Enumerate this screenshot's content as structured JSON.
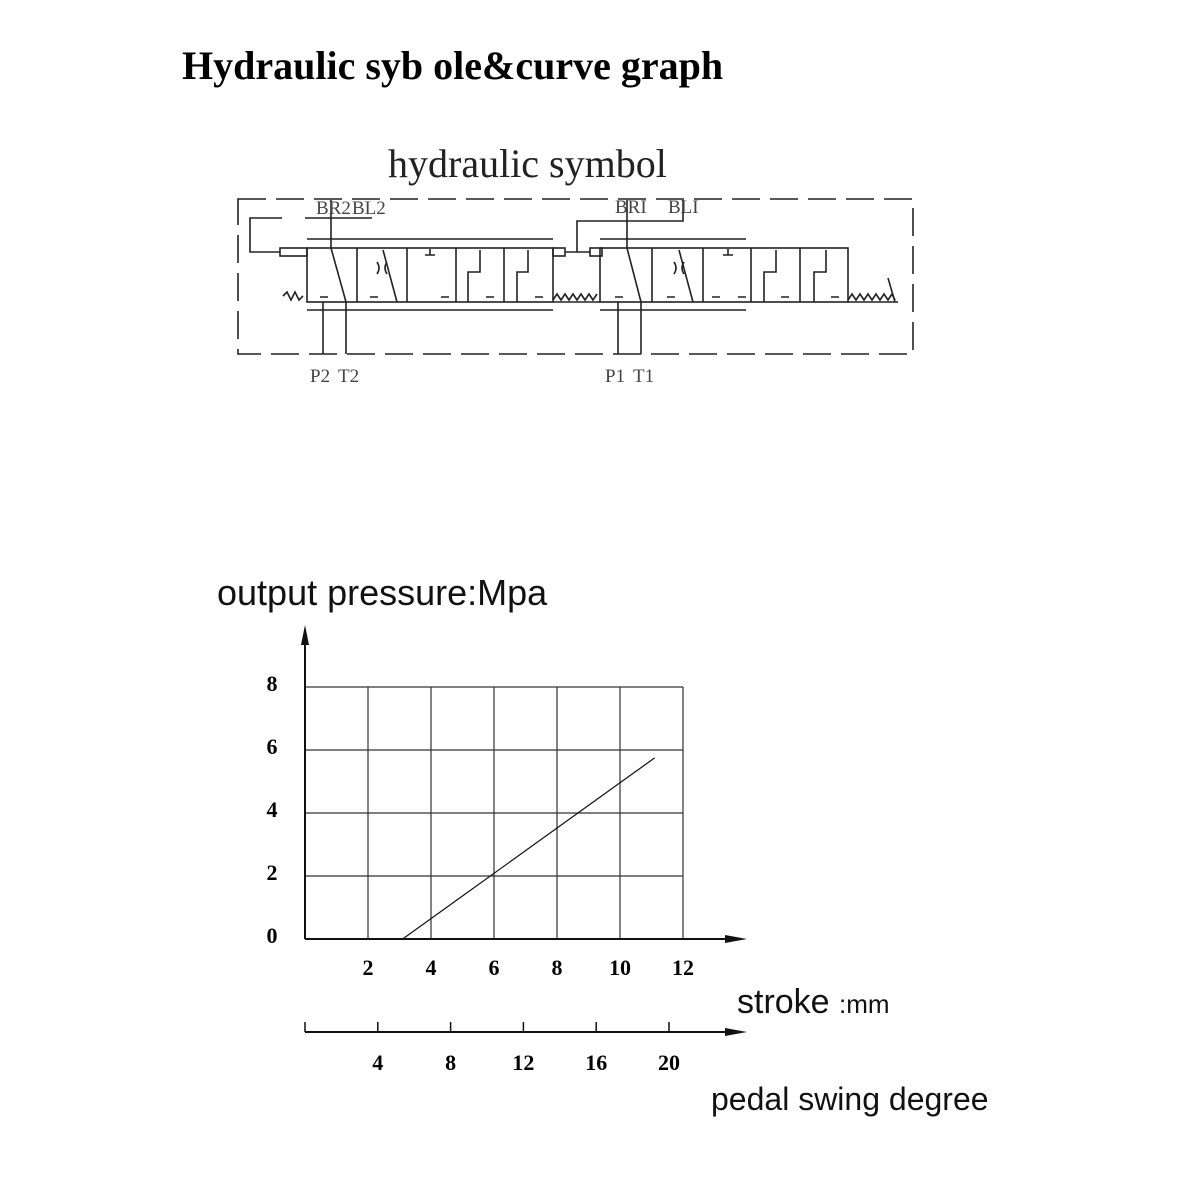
{
  "title": "Hydraulic syb ole&curve graph",
  "symbol": {
    "title": "hydraulic symbol",
    "ports": {
      "br2": "BR2",
      "bl2": "BL2",
      "br1": "BRI",
      "bl1": "BLI",
      "p2": "P2",
      "t2": "T2",
      "p1": "P1",
      "t1": "T1"
    }
  },
  "chart_data": {
    "type": "line",
    "ylabel": "output pressure:Mpa",
    "xlabel": "stroke",
    "xlabel_unit": ":mm",
    "secondary_xlabel": "pedal swing degree",
    "xlim": [
      0,
      12
    ],
    "ylim": [
      0,
      8
    ],
    "x_ticks": [
      "2",
      "4",
      "6",
      "8",
      "10",
      "12"
    ],
    "y_ticks": [
      "0",
      "2",
      "4",
      "6",
      "8"
    ],
    "secondary_x_ticks": [
      "4",
      "8",
      "12",
      "16",
      "20"
    ],
    "secondary_x_per_stroke_mm": 1.73,
    "grid": true,
    "series": [
      {
        "x": [
          3.1,
          11.1
        ],
        "y": [
          0,
          5.75
        ]
      }
    ]
  }
}
